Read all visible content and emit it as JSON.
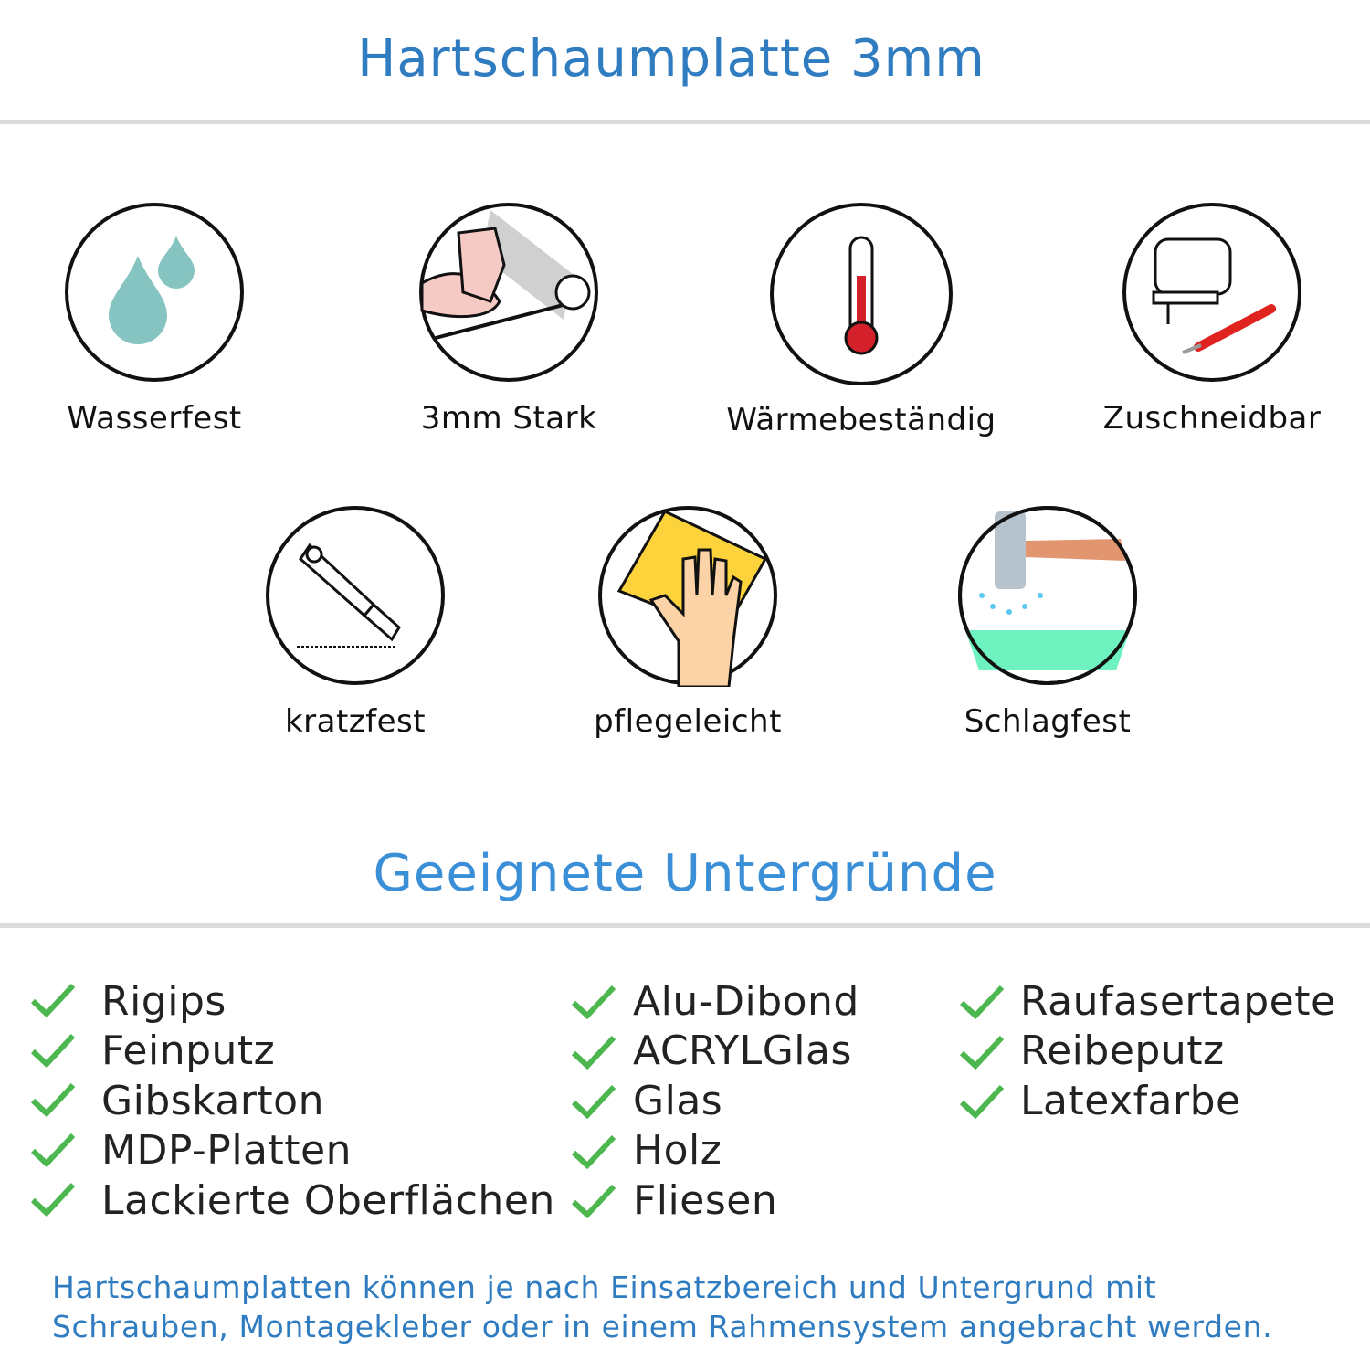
{
  "header": {
    "title": "Hartschaumplatte 3mm"
  },
  "features": [
    {
      "label": "Wasserfest",
      "icon": "water-drops-icon"
    },
    {
      "label": "3mm Stark",
      "icon": "strong-arm-icon"
    },
    {
      "label": "Wärmebeständig",
      "icon": "thermometer-icon"
    },
    {
      "label": "Zuschneidbar",
      "icon": "jigsaw-cutter-icon"
    },
    {
      "label": "kratzfest",
      "icon": "box-cutter-icon"
    },
    {
      "label": "pflegeleicht",
      "icon": "hand-cloth-icon"
    },
    {
      "label": "Schlagfest",
      "icon": "hammer-icon"
    }
  ],
  "surfaces": {
    "title": "Geeignete Untergründe",
    "columns": [
      [
        "Rigips",
        "Feinputz",
        "Gibskarton",
        "MDP-Platten",
        "Lackierte Oberflächen"
      ],
      [
        "Alu-Dibond",
        "ACRYLGlas",
        "Glas",
        "Holz",
        "Fliesen"
      ],
      [
        "Raufasertapete",
        "Reibeputz",
        "Latexfarbe"
      ]
    ]
  },
  "note": {
    "line1": "Hartschaumplatten können je nach Einsatzbereich und Untergrund mit",
    "line2": "Schrauben, Montagekleber oder in einem Rahmensystem angebracht werden."
  },
  "colors": {
    "title": "#2f7cc0",
    "check": "#4cb74f",
    "rule": "#dcdcdc"
  }
}
